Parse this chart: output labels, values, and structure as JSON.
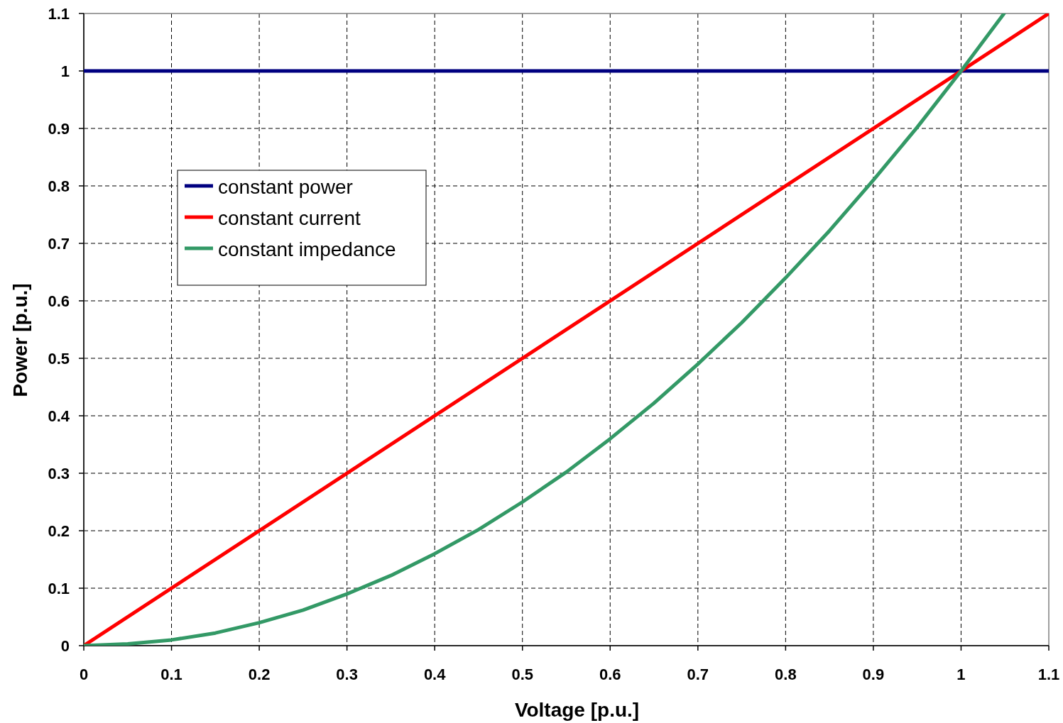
{
  "chart_data": {
    "type": "line",
    "xlabel": "Voltage [p.u.]",
    "ylabel": "Power [p.u.]",
    "xlim": [
      0,
      1.1
    ],
    "ylim": [
      0,
      1.1
    ],
    "xticks": [
      0,
      0.1,
      0.2,
      0.3,
      0.4,
      0.5,
      0.6,
      0.7,
      0.8,
      0.9,
      1,
      1.1
    ],
    "yticks": [
      0,
      0.1,
      0.2,
      0.3,
      0.4,
      0.5,
      0.6,
      0.7,
      0.8,
      0.9,
      1,
      1.1
    ],
    "grid": true,
    "legend": "top left",
    "line_style": "solid",
    "marker": "none",
    "series": [
      {
        "name": "constant power",
        "color": "#000080",
        "x": [
          0,
          1.1
        ],
        "values": [
          1,
          1
        ]
      },
      {
        "name": "constant current",
        "color": "#ff0000",
        "x": [
          0,
          1.1
        ],
        "values": [
          0,
          1.1
        ]
      },
      {
        "name": "constant impedance",
        "color": "#339966",
        "x": [
          0,
          0.05,
          0.1,
          0.15,
          0.2,
          0.25,
          0.3,
          0.35,
          0.4,
          0.45,
          0.5,
          0.55,
          0.6,
          0.65,
          0.7,
          0.75,
          0.8,
          0.85,
          0.9,
          0.95,
          1,
          1.049
        ],
        "values": [
          0,
          0.003,
          0.01,
          0.022,
          0.04,
          0.062,
          0.09,
          0.122,
          0.16,
          0.202,
          0.25,
          0.302,
          0.36,
          0.422,
          0.49,
          0.562,
          0.64,
          0.722,
          0.81,
          0.902,
          1,
          1.1
        ]
      }
    ]
  }
}
